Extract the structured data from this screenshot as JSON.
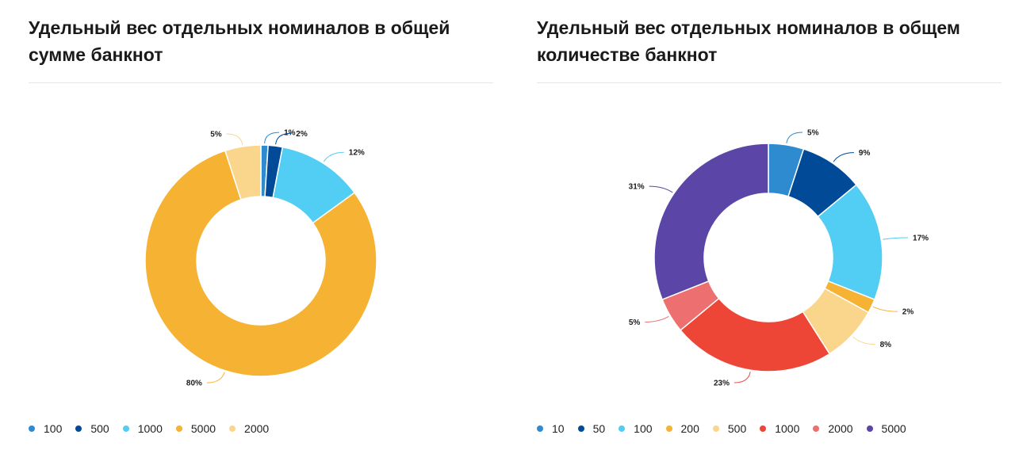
{
  "chart_data": [
    {
      "type": "pie",
      "title": "Удельный вес отдельных номиналов в общей сумме банкнот",
      "categories": [
        "100",
        "500",
        "1000",
        "5000",
        "2000"
      ],
      "values": [
        1,
        2,
        12,
        80,
        5
      ],
      "value_labels": [
        "1%",
        "2%",
        "12%",
        "80%",
        "5%"
      ],
      "colors": [
        "#2f8bd0",
        "#004a98",
        "#52cdf3",
        "#f6b232",
        "#fad68c"
      ],
      "legend": "bottom-left"
    },
    {
      "type": "pie",
      "title": "Удельный вес отдельных номиналов в общем количестве банкнот",
      "categories": [
        "10",
        "50",
        "100",
        "200",
        "500",
        "1000",
        "2000",
        "5000"
      ],
      "values": [
        5,
        9,
        17,
        2,
        8,
        23,
        5,
        31
      ],
      "value_labels": [
        "5%",
        "9%",
        "17%",
        "2%",
        "8%",
        "23%",
        "5%",
        "31%"
      ],
      "colors": [
        "#2f8bd0",
        "#004a98",
        "#52cdf3",
        "#f6b232",
        "#fad68c",
        "#ee4636",
        "#ee6f6f",
        "#5b45a6"
      ],
      "legend": "bottom-left"
    }
  ]
}
